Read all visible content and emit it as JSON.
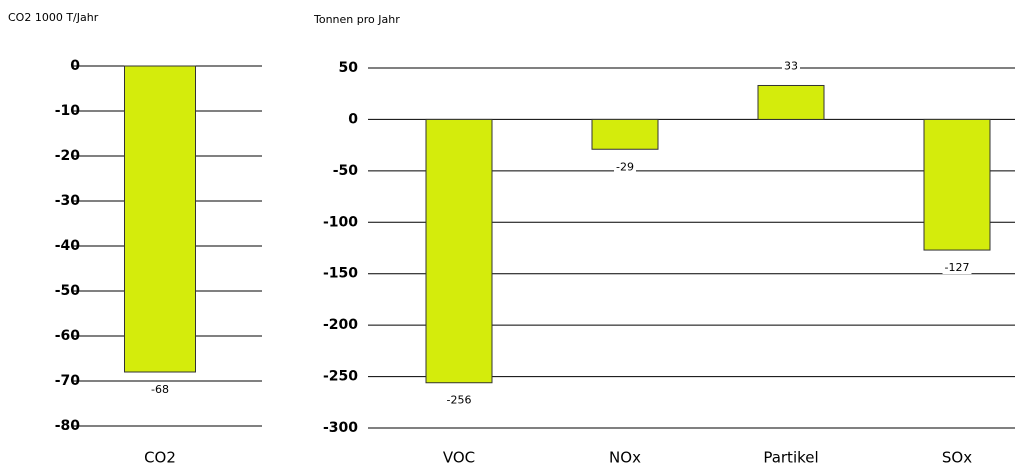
{
  "chart_data": [
    {
      "type": "bar",
      "y_label": "CO2 1000 T/Jahr",
      "categories": [
        "CO2"
      ],
      "values": [
        -68
      ],
      "color": "#d4ec0c",
      "ylim": [
        -80,
        0
      ],
      "yticks": [
        0,
        -10,
        -20,
        -30,
        -40,
        -50,
        -60,
        -70,
        -80
      ],
      "grid": true
    },
    {
      "type": "bar",
      "y_label": "Tonnen pro Jahr",
      "categories": [
        "VOC",
        "NOx",
        "Partikel",
        "SOx"
      ],
      "values": [
        -256,
        -29,
        33,
        -127
      ],
      "color": "#d4ec0c",
      "ylim": [
        -300,
        50
      ],
      "yticks": [
        50,
        0,
        -50,
        -100,
        -150,
        -200,
        -250,
        -300
      ],
      "grid": true
    }
  ]
}
